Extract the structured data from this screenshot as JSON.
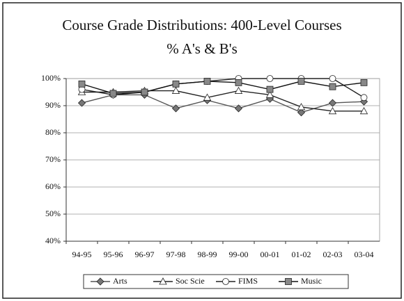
{
  "chart_data": {
    "type": "line",
    "title": "Course Grade Distributions: 400-Level Courses",
    "subtitle": "% A's & B's",
    "categories": [
      "94-95",
      "95-96",
      "96-97",
      "97-98",
      "98-99",
      "99-00",
      "00-01",
      "01-02",
      "02-03",
      "03-04"
    ],
    "series": [
      {
        "name": "Arts",
        "color": "#555555",
        "marker": "diamond",
        "values": [
          91,
          94,
          94,
          89,
          92,
          89,
          92.5,
          87.5,
          91,
          91.5
        ]
      },
      {
        "name": "Soc Scie",
        "color": "#222222",
        "marker": "triangle",
        "values": [
          95,
          95,
          95.5,
          95.5,
          93,
          95.5,
          94,
          89.5,
          88,
          88
        ]
      },
      {
        "name": "FIMS",
        "color": "#222222",
        "marker": "circle",
        "values": [
          96,
          94,
          95,
          98,
          99,
          100,
          100,
          100,
          100,
          93
        ]
      },
      {
        "name": "Music",
        "color": "#111111",
        "marker": "square",
        "values": [
          98,
          94.5,
          95,
          98,
          99,
          98.5,
          96,
          99,
          97,
          98.5
        ]
      }
    ],
    "ylim": [
      40,
      100
    ],
    "yticks": [
      {
        "value": 40,
        "label": "40%"
      },
      {
        "value": 50,
        "label": "50%"
      },
      {
        "value": 60,
        "label": "60%"
      },
      {
        "value": 70,
        "label": "70%"
      },
      {
        "value": 80,
        "label": "80%"
      },
      {
        "value": 90,
        "label": "90%"
      },
      {
        "value": 100,
        "label": "100%"
      }
    ],
    "grid": true,
    "legend": "bottom"
  }
}
